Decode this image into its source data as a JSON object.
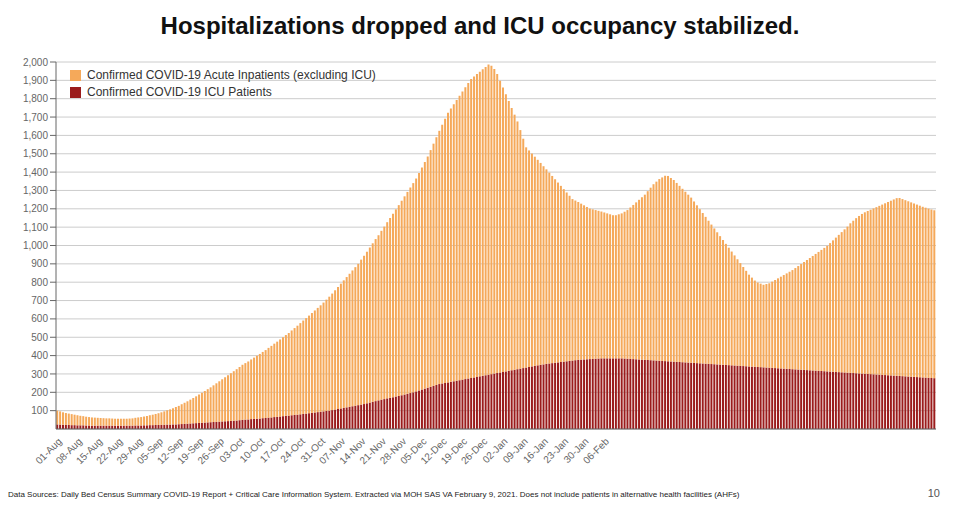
{
  "chart_data": {
    "type": "bar",
    "title": "Hospitalizations dropped and ICU occupancy stabilized.",
    "stacked": true,
    "grid": true,
    "legend": "upper left",
    "annotations": [
      "Data Sources: Daily Bed Census Summary COVID-19 Report + Critical Care Information System. Extracted via MOH SAS VA February 9, 2021. Does not include patients in alternative health facilities (AHFs)",
      "10"
    ],
    "ylim": [
      0,
      2000
    ],
    "yticks": [
      100,
      200,
      300,
      400,
      500,
      600,
      700,
      800,
      900,
      {
        "value": 1000,
        "label": "1,000"
      },
      {
        "value": 1100,
        "label": "1,100"
      },
      {
        "value": 1200,
        "label": "1,200"
      },
      {
        "value": 1300,
        "label": "1,300"
      },
      {
        "value": 1400,
        "label": "1,400"
      },
      {
        "value": 1500,
        "label": "1,500"
      },
      {
        "value": 1600,
        "label": "1,600"
      },
      {
        "value": 1700,
        "label": "1,700"
      },
      {
        "value": 1800,
        "label": "1,800"
      },
      {
        "value": 1900,
        "label": "1,900"
      },
      {
        "value": 2000,
        "label": "2,000"
      }
    ],
    "categories": [
      "01-Aug",
      null,
      null,
      null,
      null,
      null,
      null,
      "08-Aug",
      null,
      null,
      null,
      null,
      null,
      null,
      "15-Aug",
      null,
      null,
      null,
      null,
      null,
      null,
      "22-Aug",
      null,
      null,
      null,
      null,
      null,
      null,
      "29-Aug",
      null,
      null,
      null,
      null,
      null,
      null,
      "05-Sep",
      null,
      null,
      null,
      null,
      null,
      null,
      "12-Sep",
      null,
      null,
      null,
      null,
      null,
      null,
      "19-Sep",
      null,
      null,
      null,
      null,
      null,
      null,
      "26-Sep",
      null,
      null,
      null,
      null,
      null,
      null,
      "03-Oct",
      null,
      null,
      null,
      null,
      null,
      null,
      "10-Oct",
      null,
      null,
      null,
      null,
      null,
      null,
      "17-Oct",
      null,
      null,
      null,
      null,
      null,
      null,
      "24-Oct",
      null,
      null,
      null,
      null,
      null,
      null,
      "31-Oct",
      null,
      null,
      null,
      null,
      null,
      null,
      "07-Nov",
      null,
      null,
      null,
      null,
      null,
      null,
      "14-Nov",
      null,
      null,
      null,
      null,
      null,
      null,
      "21-Nov",
      null,
      null,
      null,
      null,
      null,
      null,
      "28-Nov",
      null,
      null,
      null,
      null,
      null,
      null,
      "05-Dec",
      null,
      null,
      null,
      null,
      null,
      null,
      "12-Dec",
      null,
      null,
      null,
      null,
      null,
      null,
      "19-Dec",
      null,
      null,
      null,
      null,
      null,
      null,
      "26-Dec",
      null,
      null,
      null,
      null,
      null,
      null,
      "02-Jan",
      null,
      null,
      null,
      null,
      null,
      null,
      "09-Jan",
      null,
      null,
      null,
      null,
      null,
      null,
      "16-Jan",
      null,
      null,
      null,
      null,
      null,
      null,
      "23-Jan",
      null,
      null,
      null,
      null,
      null,
      null,
      "30-Jan",
      null,
      null,
      null,
      null,
      null,
      null,
      "06-Feb",
      null,
      null,
      null,
      null,
      null,
      null,
      null,
      null,
      null,
      null,
      null,
      null,
      null,
      null,
      null,
      null,
      null,
      null,
      null,
      null,
      null,
      null,
      null,
      null,
      null,
      null,
      null,
      null,
      null,
      null,
      null,
      null,
      null,
      null,
      null,
      null,
      null,
      null,
      null,
      null,
      null,
      null,
      null,
      null,
      null,
      null,
      null,
      null,
      null,
      null,
      null,
      null,
      null,
      null,
      null,
      null,
      null,
      null,
      null,
      null,
      null,
      null,
      null,
      null,
      null,
      null,
      null,
      null,
      null,
      null,
      null,
      null,
      null,
      null,
      null,
      null,
      null,
      null,
      null,
      null,
      null,
      null,
      null,
      null,
      null,
      null,
      null,
      null,
      null,
      null,
      null,
      null,
      null,
      null,
      null,
      null,
      null,
      null,
      null,
      null,
      null,
      null,
      null,
      null,
      null,
      null,
      null,
      null,
      null,
      null,
      null,
      null,
      null,
      null
    ],
    "series": [
      {
        "name": "Confirmed COVID-19 ICU Patients",
        "color": "#9B1C1C",
        "values": [
          25,
          24,
          23,
          22,
          22,
          21,
          21,
          20,
          20,
          20,
          19,
          19,
          18,
          18,
          18,
          18,
          18,
          18,
          18,
          18,
          18,
          18,
          18,
          18,
          18,
          18,
          18,
          19,
          19,
          19,
          20,
          20,
          21,
          21,
          22,
          22,
          23,
          23,
          24,
          24,
          25,
          25,
          26,
          27,
          28,
          29,
          30,
          31,
          32,
          33,
          34,
          35,
          36,
          37,
          38,
          39,
          40,
          41,
          42,
          43,
          44,
          45,
          46,
          48,
          50,
          51,
          52,
          54,
          55,
          56,
          57,
          59,
          60,
          62,
          63,
          65,
          66,
          68,
          70,
          72,
          73,
          75,
          77,
          78,
          80,
          82,
          84,
          86,
          88,
          90,
          92,
          94,
          96,
          98,
          100,
          103,
          106,
          109,
          112,
          115,
          118,
          121,
          124,
          127,
          130,
          133,
          136,
          140,
          144,
          148,
          152,
          156,
          160,
          163,
          167,
          170,
          173,
          177,
          180,
          184,
          188,
          192,
          196,
          200,
          205,
          210,
          215,
          220,
          225,
          230,
          235,
          240,
          245,
          248,
          251,
          254,
          257,
          260,
          263,
          266,
          269,
          272,
          275,
          278,
          281,
          284,
          287,
          290,
          293,
          296,
          299,
          302,
          305,
          308,
          311,
          314,
          317,
          320,
          323,
          326,
          329,
          332,
          335,
          338,
          341,
          344,
          347,
          350,
          352,
          355,
          357,
          359,
          361,
          363,
          365,
          367,
          369,
          371,
          373,
          375,
          377,
          378,
          379,
          380,
          381,
          382,
          383,
          384,
          385,
          385,
          385,
          385,
          385,
          385,
          385,
          385,
          384,
          383,
          382,
          381,
          380,
          379,
          378,
          377,
          376,
          375,
          374,
          373,
          372,
          371,
          370,
          369,
          368,
          367,
          366,
          365,
          364,
          363,
          362,
          361,
          360,
          359,
          358,
          357,
          356,
          355,
          354,
          353,
          352,
          351,
          350,
          349,
          348,
          347,
          346,
          345,
          344,
          343,
          342,
          341,
          340,
          339,
          338,
          337,
          336,
          335,
          334,
          333,
          332,
          331,
          330,
          329,
          328,
          327,
          326,
          325,
          324,
          323,
          322,
          321,
          320,
          319,
          318,
          317,
          316,
          315,
          314,
          313,
          312,
          311,
          310,
          309,
          308,
          307,
          306,
          305,
          304,
          303,
          302,
          301,
          300,
          299,
          298,
          297,
          296,
          295,
          294,
          293,
          292,
          291,
          290,
          289,
          288,
          287,
          286,
          285,
          284,
          283,
          282,
          281,
          280,
          279,
          278,
          277
        ]
      },
      {
        "name": "Confirmed COVID-19 Acute Inpatients (excluding ICU)",
        "color": "#F5A95A",
        "values": [
          75,
          72,
          68,
          65,
          62,
          60,
          57,
          55,
          52,
          50,
          48,
          46,
          45,
          44,
          43,
          42,
          41,
          40,
          40,
          39,
          38,
          38,
          38,
          38,
          38,
          39,
          40,
          42,
          44,
          46,
          48,
          51,
          54,
          57,
          60,
          64,
          68,
          73,
          78,
          83,
          88,
          95,
          100,
          108,
          115,
          122,
          130,
          138,
          146,
          155,
          163,
          172,
          181,
          190,
          200,
          210,
          220,
          230,
          240,
          250,
          260,
          270,
          280,
          290,
          300,
          308,
          316,
          325,
          334,
          343,
          352,
          361,
          370,
          380,
          390,
          400,
          410,
          420,
          430,
          440,
          450,
          462,
          473,
          485,
          497,
          509,
          520,
          532,
          544,
          556,
          568,
          580,
          593,
          607,
          621,
          635,
          650,
          665,
          680,
          695,
          710,
          725,
          740,
          755,
          770,
          790,
          808,
          826,
          845,
          864,
          883,
          900,
          920,
          940,
          960,
          980,
          1000,
          1020,
          1040,
          1060,
          1080,
          1100,
          1120,
          1140,
          1160,
          1185,
          1210,
          1235,
          1260,
          1290,
          1320,
          1350,
          1380,
          1410,
          1440,
          1470,
          1490,
          1510,
          1530,
          1550,
          1570,
          1590,
          1610,
          1630,
          1640,
          1650,
          1660,
          1670,
          1680,
          1690,
          1680,
          1660,
          1630,
          1590,
          1550,
          1510,
          1470,
          1430,
          1390,
          1350,
          1300,
          1250,
          1200,
          1180,
          1160,
          1140,
          1120,
          1100,
          1080,
          1060,
          1040,
          1020,
          1000,
          980,
          960,
          940,
          920,
          900,
          880,
          870,
          860,
          850,
          840,
          830,
          820,
          815,
          810,
          805,
          800,
          795,
          790,
          785,
          780,
          780,
          785,
          790,
          800,
          810,
          825,
          840,
          855,
          870,
          885,
          900,
          920,
          940,
          960,
          975,
          990,
          1000,
          1010,
          1010,
          1000,
          990,
          975,
          960,
          945,
          930,
          915,
          900,
          880,
          860,
          840,
          820,
          800,
          780,
          760,
          740,
          720,
          700,
          680,
          660,
          640,
          620,
          600,
          580,
          560,
          540,
          520,
          500,
          485,
          470,
          460,
          455,
          450,
          455,
          460,
          470,
          480,
          490,
          500,
          510,
          520,
          530,
          540,
          552,
          564,
          576,
          588,
          600,
          612,
          624,
          636,
          648,
          660,
          672,
          684,
          700,
          716,
          732,
          748,
          764,
          780,
          796,
          815,
          830,
          845,
          858,
          870,
          880,
          888,
          896,
          904,
          912,
          920,
          928,
          936,
          944,
          952,
          960,
          968,
          970,
          965,
          960,
          955,
          950,
          945,
          940,
          935,
          930,
          926,
          922,
          918,
          915
        ]
      }
    ]
  }
}
